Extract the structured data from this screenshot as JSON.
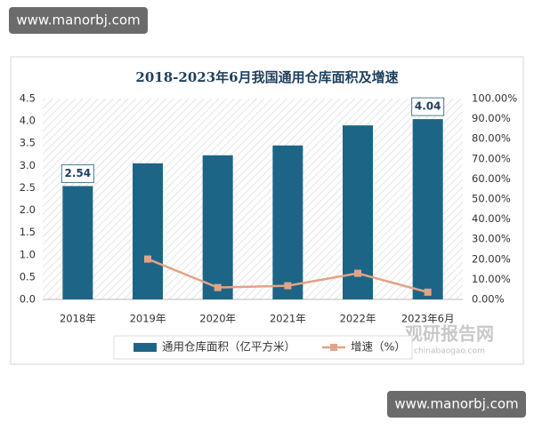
{
  "watermarks": [
    "www.manorbj.com",
    "www.manorbj.com"
  ],
  "source_mark": {
    "name": "观研报告网",
    "site": "chinabaogao.com"
  },
  "chart_data": {
    "type": "bar",
    "title": "2018-2023年6月我国通用仓库面积及增速",
    "categories": [
      "2018年",
      "2019年",
      "2020年",
      "2021年",
      "2022年",
      "2023年6月"
    ],
    "series": [
      {
        "name": "通用仓库面积（亿平方米）",
        "type": "bar",
        "color": "#1d6587",
        "values": [
          2.54,
          3.05,
          3.23,
          3.45,
          3.9,
          4.04
        ],
        "value_labels": [
          "2.54",
          null,
          null,
          null,
          null,
          "4.04"
        ]
      },
      {
        "name": "增速（%）",
        "type": "line",
        "axis": "y2",
        "color": "#e3a386",
        "values": [
          null,
          20.1,
          5.9,
          6.8,
          13.0,
          3.6
        ]
      }
    ],
    "ylim": [
      0,
      4.5
    ],
    "yticks": [
      {
        "value": 0,
        "label": "0.0"
      },
      {
        "value": 0.5,
        "label": "0.5"
      },
      {
        "value": 1,
        "label": "1.0"
      },
      {
        "value": 1.5,
        "label": "1.5"
      },
      {
        "value": 2,
        "label": "2.0"
      },
      {
        "value": 2.5,
        "label": "2.5"
      },
      {
        "value": 3,
        "label": "3.0"
      },
      {
        "value": 3.5,
        "label": "3.5"
      },
      {
        "value": 4,
        "label": "4.0"
      },
      {
        "value": 4.5,
        "label": "4.5"
      }
    ],
    "y2lim": [
      0,
      100
    ],
    "y2ticks": [
      {
        "value": 0,
        "label": "0.00%"
      },
      {
        "value": 10,
        "label": "10.00%"
      },
      {
        "value": 20,
        "label": "20.00%"
      },
      {
        "value": 30,
        "label": "30.00%"
      },
      {
        "value": 40,
        "label": "40.00%"
      },
      {
        "value": 50,
        "label": "50.00%"
      },
      {
        "value": 60,
        "label": "60.00%"
      },
      {
        "value": 70,
        "label": "70.00%"
      },
      {
        "value": 80,
        "label": "80.00%"
      },
      {
        "value": 90,
        "label": "90.00%"
      },
      {
        "value": 100,
        "label": "100.00%"
      }
    ],
    "legend": "bottom"
  }
}
